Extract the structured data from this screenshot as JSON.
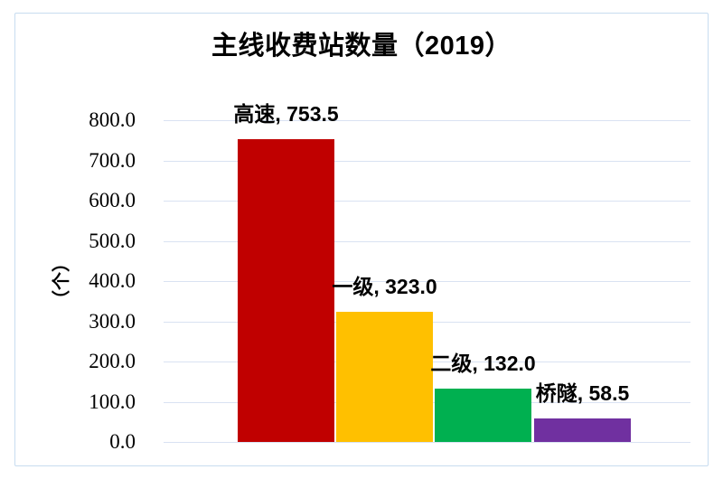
{
  "chart_data": {
    "type": "bar",
    "title": "主线收费站数量（2019）",
    "ylabel": "（个）",
    "xlabel": "",
    "categories": [
      "高速",
      "一级",
      "二级",
      "桥隧"
    ],
    "values": [
      753.5,
      323.0,
      132.0,
      58.5
    ],
    "data_labels": [
      "高速, 753.5",
      "一级, 323.0",
      "二级, 132.0",
      "桥隧, 58.5"
    ],
    "bar_colors": [
      "#C00000",
      "#FFC000",
      "#00B050",
      "#7030A0"
    ],
    "y_ticks": [
      "800.0",
      "700.0",
      "600.0",
      "500.0",
      "400.0",
      "300.0",
      "200.0",
      "100.0",
      "0.0"
    ],
    "ylim": [
      0,
      800
    ],
    "grid": true,
    "legend_position": "none",
    "colors": {
      "gridline": "#D9E2F2",
      "frame_border": "#C7DCF0",
      "text": "#000000"
    }
  }
}
